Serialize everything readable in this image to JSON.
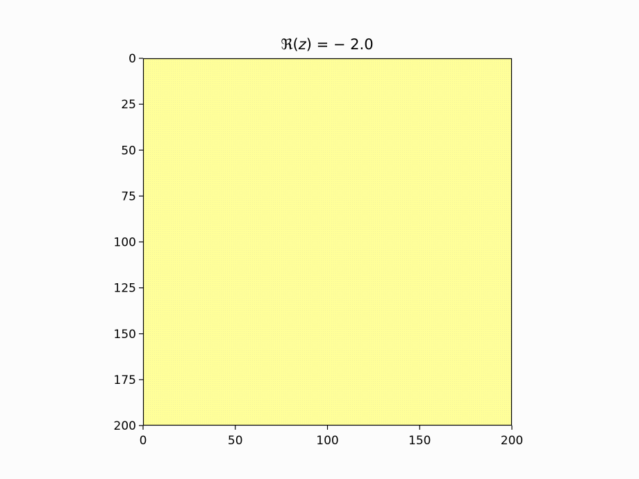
{
  "chart_data": {
    "type": "heatmap",
    "title": "ℜ(z) = − 2.0",
    "title_parts": {
      "prefix": "ℜ(",
      "variable": "z",
      "suffix": ") = − 2.0"
    },
    "xlabel": "",
    "ylabel": "",
    "xlim": [
      0,
      200
    ],
    "ylim": [
      200,
      0
    ],
    "y_inverted": true,
    "x_ticks": [
      0,
      50,
      100,
      150,
      200
    ],
    "y_ticks": [
      0,
      25,
      50,
      75,
      100,
      125,
      150,
      175,
      200
    ],
    "grid": false,
    "values": "uniform",
    "fill_color": "#ffff99",
    "texture_color": "#f2f2a0",
    "background_color": "#fcfcfc"
  }
}
